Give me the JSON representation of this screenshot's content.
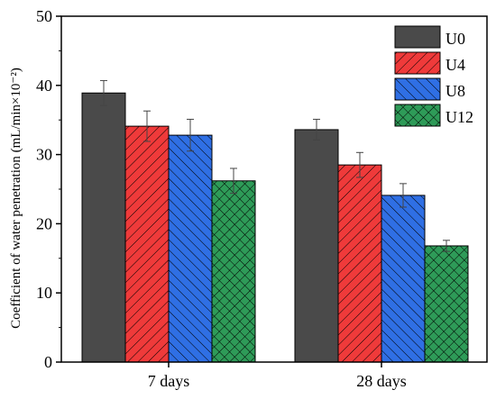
{
  "chart_data": {
    "type": "bar",
    "title": "",
    "xlabel": "",
    "ylabel": "Coefficient of water penetration (mL/min×10⁻²)",
    "ylim": [
      0,
      50
    ],
    "yticks": [
      0,
      10,
      20,
      30,
      40,
      50
    ],
    "categories": [
      "7 days",
      "28 days"
    ],
    "legend_position": "top-right",
    "grid": false,
    "series": [
      {
        "name": "U0",
        "color": "#4a4a4a",
        "pattern": "solid",
        "values": [
          38.9,
          33.6
        ],
        "errors": [
          1.8,
          1.5
        ]
      },
      {
        "name": "U4",
        "color": "#ef3a3a",
        "pattern": "diagonal-lines",
        "values": [
          34.1,
          28.5
        ],
        "errors": [
          2.2,
          1.8
        ]
      },
      {
        "name": "U8",
        "color": "#2f6fe4",
        "pattern": "diagonal-lines-reverse",
        "values": [
          32.8,
          24.1
        ],
        "errors": [
          2.3,
          1.7
        ]
      },
      {
        "name": "U12",
        "color": "#2e9b58",
        "pattern": "crosshatch",
        "values": [
          26.2,
          16.8
        ],
        "errors": [
          1.8,
          0.8
        ]
      }
    ]
  }
}
